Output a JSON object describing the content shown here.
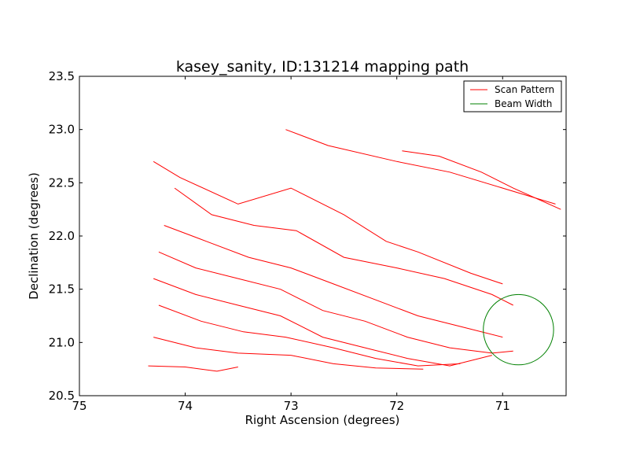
{
  "chart_data": {
    "type": "line",
    "title": "kasey_sanity, ID:131214 mapping path",
    "xlabel": "Right Ascension (degrees)",
    "ylabel": "Declination (degrees)",
    "xlim": [
      75,
      70.4
    ],
    "ylim": [
      20.5,
      23.5
    ],
    "x_ticks": [
      75,
      74,
      73,
      72,
      71
    ],
    "x_tick_labels": [
      "75",
      "74",
      "73",
      "72",
      "71"
    ],
    "y_ticks": [
      20.5,
      21.0,
      21.5,
      22.0,
      22.5,
      23.0,
      23.5
    ],
    "y_tick_labels": [
      "20.5",
      "21.0",
      "21.5",
      "22.0",
      "22.5",
      "23.0",
      "23.5"
    ],
    "grid": false,
    "legend": {
      "placement": "top-right",
      "entries": [
        {
          "label": "Scan Pattern",
          "color": "#ff0000",
          "style": "line"
        },
        {
          "label": "Beam Width",
          "color": "#008000",
          "style": "line"
        }
      ]
    },
    "series": [
      {
        "color": "#ff0000",
        "x": [
          73.05,
          72.65,
          72.0,
          71.5,
          70.5
        ],
        "y": [
          23.0,
          22.85,
          22.7,
          22.6,
          22.3
        ]
      },
      {
        "color": "#ff0000",
        "x": [
          74.3,
          74.05,
          73.5,
          73.0,
          72.5,
          72.1,
          71.8,
          71.3,
          71.0
        ],
        "y": [
          22.7,
          22.55,
          22.3,
          22.45,
          22.2,
          21.95,
          21.85,
          21.65,
          21.55
        ]
      },
      {
        "color": "#ff0000",
        "x": [
          74.1,
          73.75,
          73.35,
          72.95,
          72.5,
          72.0,
          71.55,
          71.1,
          70.9
        ],
        "y": [
          22.45,
          22.2,
          22.1,
          22.05,
          21.8,
          21.7,
          21.6,
          21.45,
          21.35
        ]
      },
      {
        "color": "#ff0000",
        "x": [
          74.2,
          73.8,
          73.4,
          73.0,
          72.6,
          72.2,
          71.8,
          71.4,
          71.0
        ],
        "y": [
          22.1,
          21.95,
          21.8,
          21.7,
          21.55,
          21.4,
          21.25,
          21.15,
          21.05
        ]
      },
      {
        "color": "#ff0000",
        "x": [
          74.25,
          73.9,
          73.5,
          73.1,
          72.7,
          72.3,
          71.9,
          71.5,
          71.1,
          70.9
        ],
        "y": [
          21.85,
          21.7,
          21.6,
          21.5,
          21.3,
          21.2,
          21.05,
          20.95,
          20.9,
          20.92
        ]
      },
      {
        "color": "#ff0000",
        "x": [
          74.3,
          73.9,
          73.5,
          73.1,
          72.7,
          72.3,
          71.9,
          71.5,
          71.1
        ],
        "y": [
          21.6,
          21.45,
          21.35,
          21.25,
          21.05,
          20.95,
          20.85,
          20.78,
          20.88
        ]
      },
      {
        "color": "#ff0000",
        "x": [
          74.25,
          73.85,
          73.45,
          73.05,
          72.6,
          72.2,
          71.8,
          71.4
        ],
        "y": [
          21.35,
          21.2,
          21.1,
          21.05,
          20.95,
          20.85,
          20.78,
          20.8
        ]
      },
      {
        "color": "#ff0000",
        "x": [
          74.3,
          73.9,
          73.5,
          73.0,
          72.6,
          72.2,
          71.75
        ],
        "y": [
          21.05,
          20.95,
          20.9,
          20.88,
          20.8,
          20.76,
          20.75
        ]
      },
      {
        "color": "#ff0000",
        "x": [
          74.35,
          74.0,
          73.7,
          73.5
        ],
        "y": [
          20.78,
          20.77,
          20.73,
          20.77
        ]
      },
      {
        "color": "#ff0000",
        "x": [
          71.95,
          71.6,
          71.2,
          70.9,
          70.45
        ],
        "y": [
          22.8,
          22.75,
          22.6,
          22.45,
          22.25
        ]
      }
    ],
    "beam": {
      "type": "circle",
      "color": "#008000",
      "center_x": 70.85,
      "center_y": 21.12,
      "radius_dec": 0.33
    }
  }
}
